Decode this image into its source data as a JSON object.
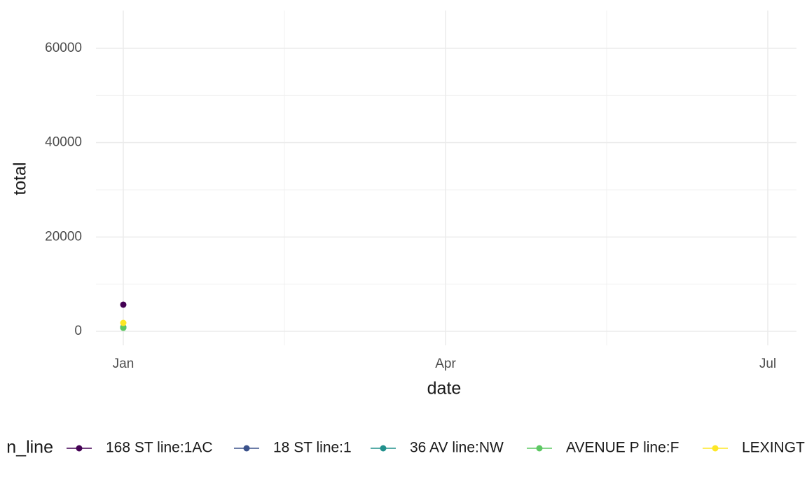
{
  "chart_data": {
    "type": "scatter",
    "x_label": "date",
    "y_label": "total",
    "categories": [
      "Jan",
      "Apr",
      "Jul"
    ],
    "ylim": [
      -2970,
      68020
    ],
    "yticks": [
      0,
      20000,
      40000,
      60000
    ],
    "grid": true,
    "legend_title": "n_line",
    "legend_position": "bottom",
    "series": [
      {
        "name": "168 ST line:1AC",
        "color": "#440154",
        "values": [
          5650,
          null,
          null
        ]
      },
      {
        "name": "18 ST line:1",
        "color": "#3b528b",
        "values": [
          850,
          null,
          null
        ]
      },
      {
        "name": "36 AV line:NW",
        "color": "#21908c",
        "values": [
          800,
          null,
          null
        ]
      },
      {
        "name": "AVENUE P line:F",
        "color": "#5dc863",
        "values": [
          740,
          null,
          null
        ]
      },
      {
        "name": "LEXINGT",
        "color": "#fde725",
        "values": [
          1780,
          null,
          null
        ]
      }
    ]
  }
}
